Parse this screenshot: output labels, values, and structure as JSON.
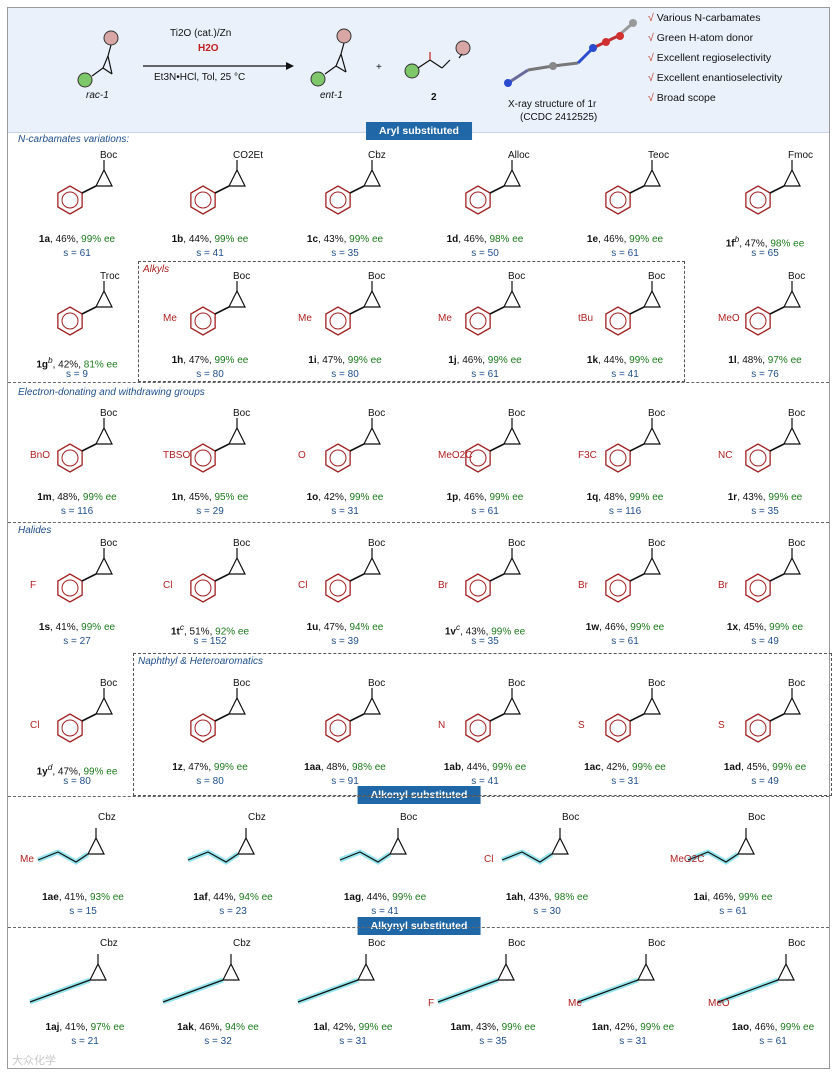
{
  "header": {
    "reactant_label": "rac-1",
    "conditions_top": "Ti2O (cat.)/Zn",
    "conditions_mid": "H2O",
    "conditions_bottom": "Et3N•HCl, Tol, 25 °C",
    "product_label": "ent-1",
    "plus": "+",
    "byproduct_label": "2",
    "xray_line1": "X-ray structure of 1r",
    "xray_line2": "(CCDC 2412525)",
    "checklist": [
      "Various N-carbamates",
      "Green H-atom donor",
      "Excellent regioselectivity",
      "Excellent enantioselectivity",
      "Broad scope"
    ]
  },
  "banners": {
    "aryl": "Aryl substituted",
    "alkenyl": "Alkenyl substituted",
    "alkynyl": "Alkynyl substituted"
  },
  "sections": {
    "carbamates": "N-carbamates variations:",
    "alkyls": "Alkyls",
    "edg": "Electron-donating and withdrawing groups",
    "halides": "Halides",
    "hetero": "Naphthyl & Heteroaromatics"
  },
  "compounds": [
    {
      "id": "1a",
      "sup": "",
      "yield": "46%",
      "ee": "99% ee",
      "s": "s = 61",
      "pg": "Boc",
      "sub": ""
    },
    {
      "id": "1b",
      "sup": "",
      "yield": "44%",
      "ee": "99% ee",
      "s": "s = 41",
      "pg": "CO2Et",
      "sub": ""
    },
    {
      "id": "1c",
      "sup": "",
      "yield": "43%",
      "ee": "99% ee",
      "s": "s = 35",
      "pg": "Cbz",
      "sub": ""
    },
    {
      "id": "1d",
      "sup": "",
      "yield": "46%",
      "ee": "98% ee",
      "s": "s = 50",
      "pg": "Alloc",
      "sub": ""
    },
    {
      "id": "1e",
      "sup": "",
      "yield": "46%",
      "ee": "99% ee",
      "s": "s = 61",
      "pg": "Teoc",
      "sub": ""
    },
    {
      "id": "1f",
      "sup": "b",
      "yield": "47%",
      "ee": "98% ee",
      "s": "s = 65",
      "pg": "Fmoc",
      "sub": ""
    },
    {
      "id": "1g",
      "sup": "b",
      "yield": "42%",
      "ee": "81% ee",
      "s": "s = 9",
      "pg": "Troc",
      "sub": ""
    },
    {
      "id": "1h",
      "sup": "",
      "yield": "47%",
      "ee": "99% ee",
      "s": "s = 80",
      "pg": "Boc",
      "sub": "Me"
    },
    {
      "id": "1i",
      "sup": "",
      "yield": "47%",
      "ee": "99% ee",
      "s": "s = 80",
      "pg": "Boc",
      "sub": "Me"
    },
    {
      "id": "1j",
      "sup": "",
      "yield": "46%",
      "ee": "99% ee",
      "s": "s = 61",
      "pg": "Boc",
      "sub": "Me"
    },
    {
      "id": "1k",
      "sup": "",
      "yield": "44%",
      "ee": "99% ee",
      "s": "s = 41",
      "pg": "Boc",
      "sub": "tBu"
    },
    {
      "id": "1l",
      "sup": "",
      "yield": "48%",
      "ee": "97% ee",
      "s": "s = 76",
      "pg": "Boc",
      "sub": "MeO"
    },
    {
      "id": "1m",
      "sup": "",
      "yield": "48%",
      "ee": "99% ee",
      "s": "s = 116",
      "pg": "Boc",
      "sub": "BnO"
    },
    {
      "id": "1n",
      "sup": "",
      "yield": "45%",
      "ee": "95% ee",
      "s": "s = 29",
      "pg": "Boc",
      "sub": "TBSO"
    },
    {
      "id": "1o",
      "sup": "",
      "yield": "42%",
      "ee": "99% ee",
      "s": "s = 31",
      "pg": "Boc",
      "sub": "O"
    },
    {
      "id": "1p",
      "sup": "",
      "yield": "46%",
      "ee": "99% ee",
      "s": "s = 61",
      "pg": "Boc",
      "sub": "MeO2C"
    },
    {
      "id": "1q",
      "sup": "",
      "yield": "48%",
      "ee": "99% ee",
      "s": "s = 116",
      "pg": "Boc",
      "sub": "F3C"
    },
    {
      "id": "1r",
      "sup": "",
      "yield": "43%",
      "ee": "99% ee",
      "s": "s = 35",
      "pg": "Boc",
      "sub": "NC"
    },
    {
      "id": "1s",
      "sup": "",
      "yield": "41%",
      "ee": "99% ee",
      "s": "s = 27",
      "pg": "Boc",
      "sub": "F"
    },
    {
      "id": "1t",
      "sup": "c",
      "yield": "51%",
      "ee": "92% ee",
      "s": "s = 152",
      "pg": "Boc",
      "sub": "Cl"
    },
    {
      "id": "1u",
      "sup": "",
      "yield": "47%",
      "ee": "94% ee",
      "s": "s = 39",
      "pg": "Boc",
      "sub": "Cl"
    },
    {
      "id": "1v",
      "sup": "c",
      "yield": "43%",
      "ee": "99% ee",
      "s": "s = 35",
      "pg": "Boc",
      "sub": "Br"
    },
    {
      "id": "1w",
      "sup": "",
      "yield": "46%",
      "ee": "99% ee",
      "s": "s = 61",
      "pg": "Boc",
      "sub": "Br"
    },
    {
      "id": "1x",
      "sup": "",
      "yield": "45%",
      "ee": "99% ee",
      "s": "s = 49",
      "pg": "Boc",
      "sub": "Br"
    },
    {
      "id": "1y",
      "sup": "d",
      "yield": "47%",
      "ee": "99% ee",
      "s": "s = 80",
      "pg": "Boc",
      "sub": "Cl"
    },
    {
      "id": "1z",
      "sup": "",
      "yield": "47%",
      "ee": "99% ee",
      "s": "s = 80",
      "pg": "Boc",
      "sub": ""
    },
    {
      "id": "1aa",
      "sup": "",
      "yield": "48%",
      "ee": "98% ee",
      "s": "s = 91",
      "pg": "Boc",
      "sub": ""
    },
    {
      "id": "1ab",
      "sup": "",
      "yield": "44%",
      "ee": "99% ee",
      "s": "s = 41",
      "pg": "Boc",
      "sub": "N"
    },
    {
      "id": "1ac",
      "sup": "",
      "yield": "42%",
      "ee": "99% ee",
      "s": "s = 31",
      "pg": "Boc",
      "sub": "S"
    },
    {
      "id": "1ad",
      "sup": "",
      "yield": "45%",
      "ee": "99% ee",
      "s": "s = 49",
      "pg": "Boc",
      "sub": "S"
    },
    {
      "id": "1ae",
      "sup": "",
      "yield": "41%",
      "ee": "93% ee",
      "s": "s = 15",
      "pg": "Cbz",
      "sub": "Me"
    },
    {
      "id": "1af",
      "sup": "",
      "yield": "44%",
      "ee": "94% ee",
      "s": "s = 23",
      "pg": "Cbz",
      "sub": ""
    },
    {
      "id": "1ag",
      "sup": "",
      "yield": "44%",
      "ee": "99% ee",
      "s": "s = 41",
      "pg": "Boc",
      "sub": ""
    },
    {
      "id": "1ah",
      "sup": "",
      "yield": "43%",
      "ee": "98% ee",
      "s": "s = 30",
      "pg": "Boc",
      "sub": "Cl"
    },
    {
      "id": "1ai",
      "sup": "",
      "yield": "46%",
      "ee": "99% ee",
      "s": "s = 61",
      "pg": "Boc",
      "sub": "MeO2C"
    },
    {
      "id": "1aj",
      "sup": "",
      "yield": "41%",
      "ee": "97% ee",
      "s": "s = 21",
      "pg": "Cbz",
      "sub": ""
    },
    {
      "id": "1ak",
      "sup": "",
      "yield": "46%",
      "ee": "94% ee",
      "s": "s = 32",
      "pg": "Cbz",
      "sub": ""
    },
    {
      "id": "1al",
      "sup": "",
      "yield": "42%",
      "ee": "99% ee",
      "s": "s = 31",
      "pg": "Boc",
      "sub": ""
    },
    {
      "id": "1am",
      "sup": "",
      "yield": "43%",
      "ee": "99% ee",
      "s": "s = 35",
      "pg": "Boc",
      "sub": "F"
    },
    {
      "id": "1an",
      "sup": "",
      "yield": "42%",
      "ee": "99% ee",
      "s": "s = 31",
      "pg": "Boc",
      "sub": "Me"
    },
    {
      "id": "1ao",
      "sup": "",
      "yield": "46%",
      "ee": "99% ee",
      "s": "s = 61",
      "pg": "Boc",
      "sub": "MeO"
    }
  ],
  "colors": {
    "substituent": "#b02020",
    "ee": "#1b7a1b",
    "s_value": "#1f4f8c",
    "banner": "#1f67a6",
    "header_bg": "#eaf1fb",
    "green_ball": "#7ec86b",
    "pink_ball": "#d9a6a6",
    "highlight": "#3fd0e0"
  },
  "watermark": "大众化学"
}
